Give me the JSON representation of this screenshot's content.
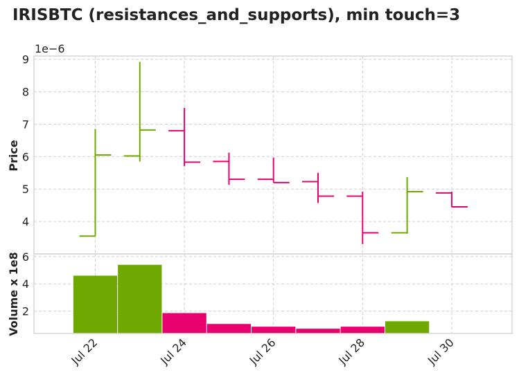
{
  "chart_data": {
    "type": "ohlc",
    "title": "IRISBTC (resistances_and_supports), min touch=3",
    "price_panel": {
      "ylabel": "Price",
      "exponent_label": "1e−6",
      "yticks": [
        "4",
        "5",
        "6",
        "7",
        "8",
        "9"
      ],
      "ylim": [
        3.0,
        9.1
      ]
    },
    "volume_panel": {
      "ylabel": "Volume x 1e8",
      "yticks": [
        "2",
        "4",
        "6"
      ],
      "ylim": [
        0.35,
        6.2
      ]
    },
    "x_ticks": [
      "Jul 22",
      "Jul 24",
      "Jul 26",
      "Jul 28",
      "Jul 30"
    ],
    "colors": {
      "up": "#6fa800",
      "down": "#e8006f"
    },
    "candles": [
      {
        "date": "Jul 22",
        "open": 3.55,
        "high": 6.85,
        "low": 3.55,
        "close": 6.05,
        "volume": 4.6
      },
      {
        "date": "Jul 23",
        "open": 6.02,
        "high": 8.92,
        "low": 5.85,
        "close": 6.82,
        "volume": 5.4
      },
      {
        "date": "Jul 24",
        "open": 6.8,
        "high": 7.5,
        "low": 5.7,
        "close": 5.83,
        "volume": 1.85
      },
      {
        "date": "Jul 25",
        "open": 5.85,
        "high": 6.12,
        "low": 5.13,
        "close": 5.3,
        "volume": 1.05
      },
      {
        "date": "Jul 26",
        "open": 5.3,
        "high": 5.97,
        "low": 5.2,
        "close": 5.2,
        "volume": 0.85
      },
      {
        "date": "Jul 27",
        "open": 5.23,
        "high": 5.5,
        "low": 4.57,
        "close": 4.78,
        "volume": 0.7
      },
      {
        "date": "Jul 28",
        "open": 4.78,
        "high": 4.92,
        "low": 3.3,
        "close": 3.65,
        "volume": 0.85
      },
      {
        "date": "Jul 29",
        "open": 3.65,
        "high": 5.37,
        "low": 3.62,
        "close": 4.92,
        "volume": 1.25
      },
      {
        "date": "Jul 30",
        "open": 4.88,
        "high": 4.92,
        "low": 4.45,
        "close": 4.45,
        "volume": 0.3
      }
    ]
  }
}
